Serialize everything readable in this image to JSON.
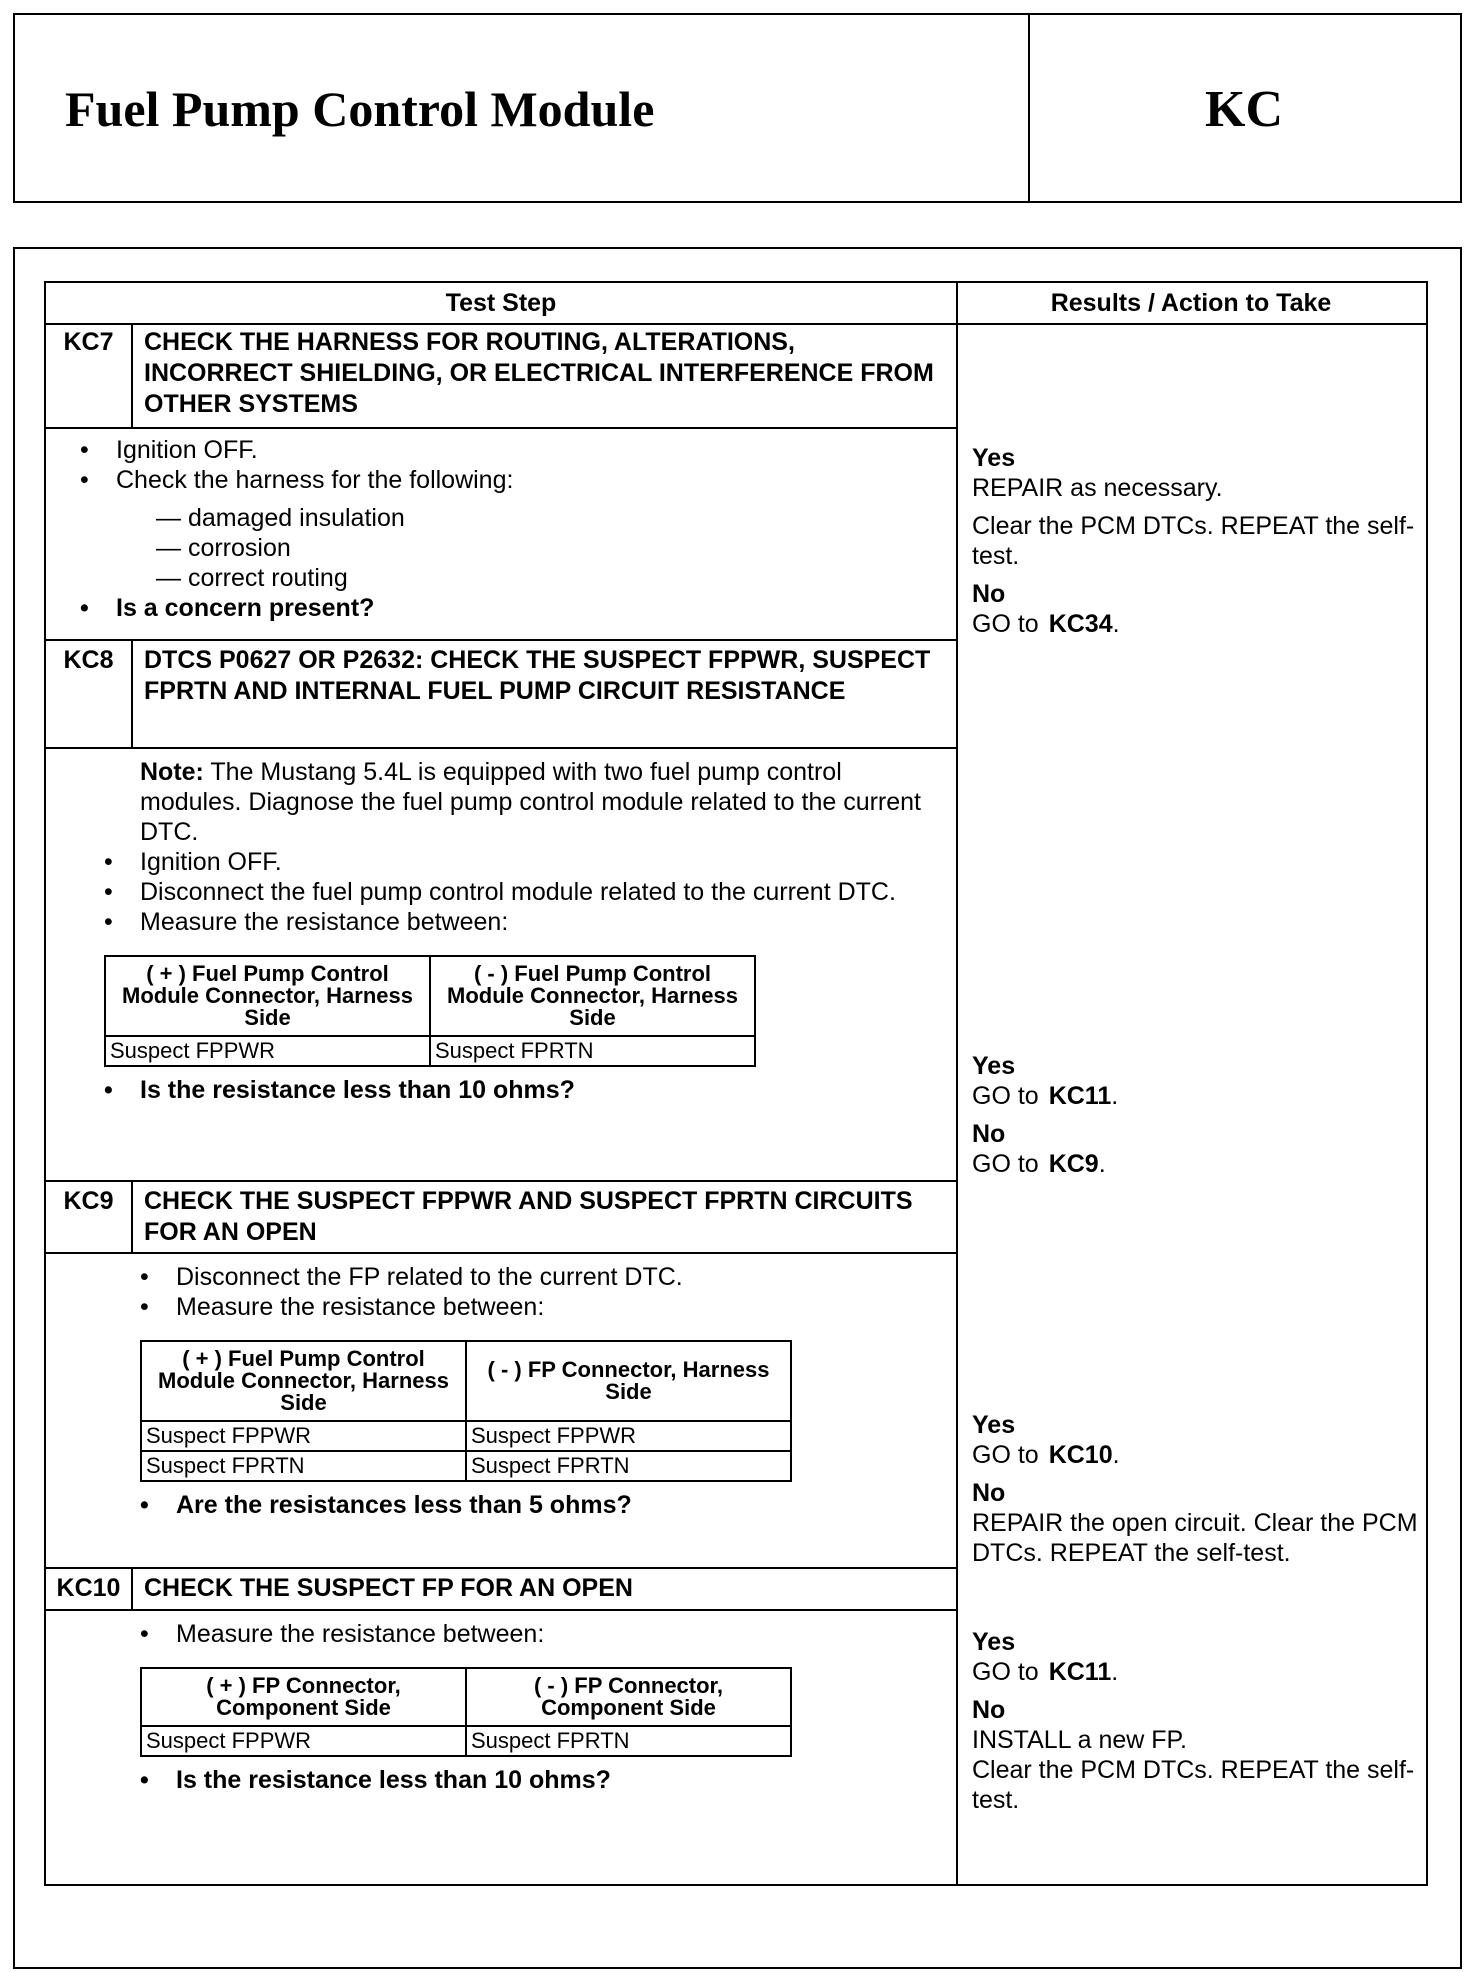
{
  "header": {
    "title": "Fuel Pump Control Module",
    "code": "KC"
  },
  "table": {
    "col_test": "Test Step",
    "col_results": "Results / Action to Take"
  },
  "steps": [
    {
      "code": "KC7",
      "title": "CHECK THE HARNESS FOR ROUTING, ALTERATIONS, INCORRECT SHIELDING, OR ELECTRICAL INTERFERENCE FROM OTHER SYSTEMS",
      "bullets": [
        "Ignition OFF.",
        "Check the harness for the following:"
      ],
      "dashes": [
        "— damaged insulation",
        "— corrosion",
        "— correct routing"
      ],
      "question": "Is a concern present?",
      "yes_label": "Yes",
      "yes": [
        "REPAIR as necessary.",
        "Clear the PCM DTCs. REPEAT the self-test."
      ],
      "no_label": "No",
      "no_go": "GO to",
      "no_target": "KC34",
      "no_dot": "."
    },
    {
      "code": "KC8",
      "title": "DTCS P0627 OR P2632: CHECK THE SUSPECT FPPWR, SUSPECT FPRTN AND INTERNAL FUEL PUMP CIRCUIT RESISTANCE",
      "note_label": "Note:",
      "note": " The Mustang 5.4L is equipped with two fuel pump control modules. Diagnose the fuel pump control module related to the current DTC.",
      "bullets": [
        "Ignition OFF.",
        "Disconnect the fuel pump control module related to the current DTC.",
        "Measure the resistance between:"
      ],
      "meas_headers": [
        "( + ) Fuel Pump Control Module Connector, Harness Side",
        "( - ) Fuel Pump Control Module Connector, Harness Side"
      ],
      "meas_rows": [
        [
          "Suspect FPPWR",
          "Suspect FPRTN"
        ]
      ],
      "question": "Is the resistance less than 10 ohms?",
      "yes_label": "Yes",
      "yes_go": "GO to",
      "yes_target": "KC11",
      "no_label": "No",
      "no_go": "GO to",
      "no_target": "KC9",
      "dot": "."
    },
    {
      "code": "KC9",
      "title": "CHECK THE SUSPECT FPPWR AND SUSPECT FPRTN CIRCUITS FOR AN OPEN",
      "bullets": [
        "Disconnect the FP related to the current DTC.",
        "Measure the resistance between:"
      ],
      "meas_headers": [
        "( + ) Fuel Pump Control Module Connector, Harness Side",
        "( - ) FP Connector, Harness Side"
      ],
      "meas_rows": [
        [
          "Suspect FPPWR",
          "Suspect FPPWR"
        ],
        [
          "Suspect FPRTN",
          "Suspect FPRTN"
        ]
      ],
      "question": "Are the resistances less than 5 ohms?",
      "yes_label": "Yes",
      "yes_go": "GO to",
      "yes_target": "KC10",
      "no_label": "No",
      "no": "REPAIR the open circuit. Clear the PCM DTCs. REPEAT the self-test.",
      "dot": "."
    },
    {
      "code": "KC10",
      "title": "CHECK THE SUSPECT FP FOR AN OPEN",
      "bullets": [
        "Measure the resistance between:"
      ],
      "meas_headers": [
        "( + ) FP Connector, Component Side",
        "( - ) FP Connector, Component Side"
      ],
      "meas_rows": [
        [
          "Suspect FPPWR",
          "Suspect FPRTN"
        ]
      ],
      "question": "Is the resistance less than 10 ohms?",
      "yes_label": "Yes",
      "yes_go": "GO to",
      "yes_target": "KC11",
      "no_label": "No",
      "no": [
        "INSTALL a new FP.",
        "Clear the PCM DTCs. REPEAT the self-test."
      ],
      "dot": "."
    }
  ]
}
